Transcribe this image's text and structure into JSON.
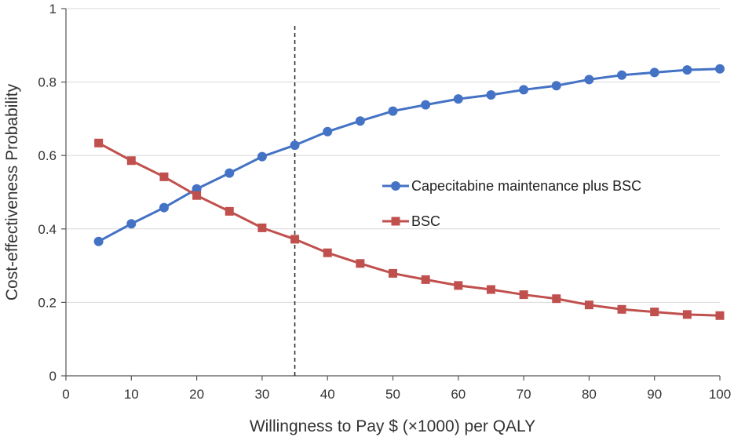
{
  "chart_data": {
    "type": "line",
    "title": "",
    "xlabel": "Willingness to Pay $ (×1000) per QALY",
    "ylabel": "Cost-effectiveness Probability",
    "xlim": [
      0,
      100
    ],
    "ylim": [
      0,
      1
    ],
    "x_ticks": [
      0,
      10,
      20,
      30,
      40,
      50,
      60,
      70,
      80,
      90,
      100
    ],
    "y_ticks": [
      0,
      0.2,
      0.4,
      0.6,
      0.8,
      1
    ],
    "x_tick_labels": [
      "0",
      "10",
      "20",
      "30",
      "40",
      "50",
      "60",
      "70",
      "80",
      "90",
      "100"
    ],
    "y_tick_labels": [
      "0",
      "0.2",
      "0.4",
      "0.6",
      "0.8",
      "1"
    ],
    "grid": "horizontal",
    "legend_position": "right-middle",
    "reference_line": {
      "x": 35,
      "style": "dashed"
    },
    "x": [
      5,
      10,
      15,
      20,
      25,
      30,
      35,
      40,
      45,
      50,
      55,
      60,
      65,
      70,
      75,
      80,
      85,
      90,
      95,
      100
    ],
    "series": [
      {
        "name": "Capecitabine maintenance plus BSC",
        "color": "#4472C4",
        "marker": "circle",
        "values": [
          0.366,
          0.414,
          0.458,
          0.509,
          0.552,
          0.597,
          0.628,
          0.665,
          0.694,
          0.721,
          0.738,
          0.754,
          0.765,
          0.779,
          0.79,
          0.807,
          0.819,
          0.826,
          0.833,
          0.836
        ]
      },
      {
        "name": "BSC",
        "color": "#C0504D",
        "marker": "square",
        "values": [
          0.634,
          0.586,
          0.542,
          0.491,
          0.448,
          0.403,
          0.372,
          0.335,
          0.306,
          0.279,
          0.262,
          0.246,
          0.235,
          0.221,
          0.21,
          0.193,
          0.181,
          0.174,
          0.167,
          0.164
        ]
      }
    ]
  }
}
